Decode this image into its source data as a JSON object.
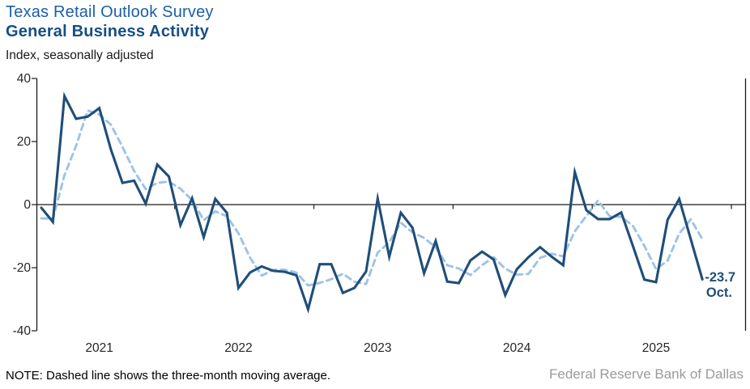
{
  "header": {
    "title": "Texas Retail Outlook Survey",
    "subtitle": "General Business Activity",
    "axis_units": "Index, seasonally adjusted"
  },
  "annotation": {
    "value": "-23.7",
    "month": "Oct."
  },
  "footer": {
    "note": "NOTE: Dashed line shows the three-month moving average.",
    "attribution": "Federal Reserve Bank of Dallas"
  },
  "colors": {
    "monthly_line": "#1f4e79",
    "moving_average_line": "#9dc3e6",
    "axis": "#1a1a1a",
    "tick_label": "#262626"
  },
  "chart_data": {
    "type": "line",
    "title": "Texas Retail Outlook Survey — General Business Activity",
    "ylabel": "Index, seasonally adjusted",
    "ylim": [
      -40,
      40
    ],
    "y_ticks": [
      40,
      20,
      0,
      -20,
      -40
    ],
    "x_tick_labels": [
      "2021",
      "2022",
      "2023",
      "2024",
      "2025"
    ],
    "grid": false,
    "legend_position": "none",
    "series": [
      {
        "name": "General Business Activity index, monthly",
        "style": "solid",
        "color": "#1f4e79",
        "first_point": "Jan 2021",
        "last_point": "Oct 2025",
        "values": [
          -1.0,
          -5.5,
          34.4,
          27.2,
          27.9,
          30.6,
          17.5,
          6.9,
          7.6,
          0.3,
          12.7,
          8.9,
          -6.5,
          2.0,
          -10.3,
          1.8,
          -2.6,
          -26.4,
          -21.5,
          -19.6,
          -21.0,
          -21.3,
          -22.4,
          -33.2,
          -18.9,
          -18.9,
          -28.0,
          -26.4,
          -21.2,
          1.9,
          -16.5,
          -2.6,
          -7.3,
          -21.8,
          -11.5,
          -24.4,
          -24.9,
          -17.7,
          -14.9,
          -17.4,
          -28.7,
          -20.5,
          -16.7,
          -13.5,
          -16.5,
          -19.2,
          10.3,
          -1.8,
          -4.6,
          -4.6,
          -2.5,
          -13.0,
          -23.8,
          -24.6,
          -4.8,
          1.8,
          -11.0,
          -23.7
        ]
      },
      {
        "name": "Three-month moving average",
        "style": "dashed",
        "color": "#9dc3e6",
        "derived": "three-month moving average of monthly series",
        "lead_in_values": [
          -5,
          -7
        ]
      }
    ],
    "last_point_label": "-23.7 Oct."
  }
}
